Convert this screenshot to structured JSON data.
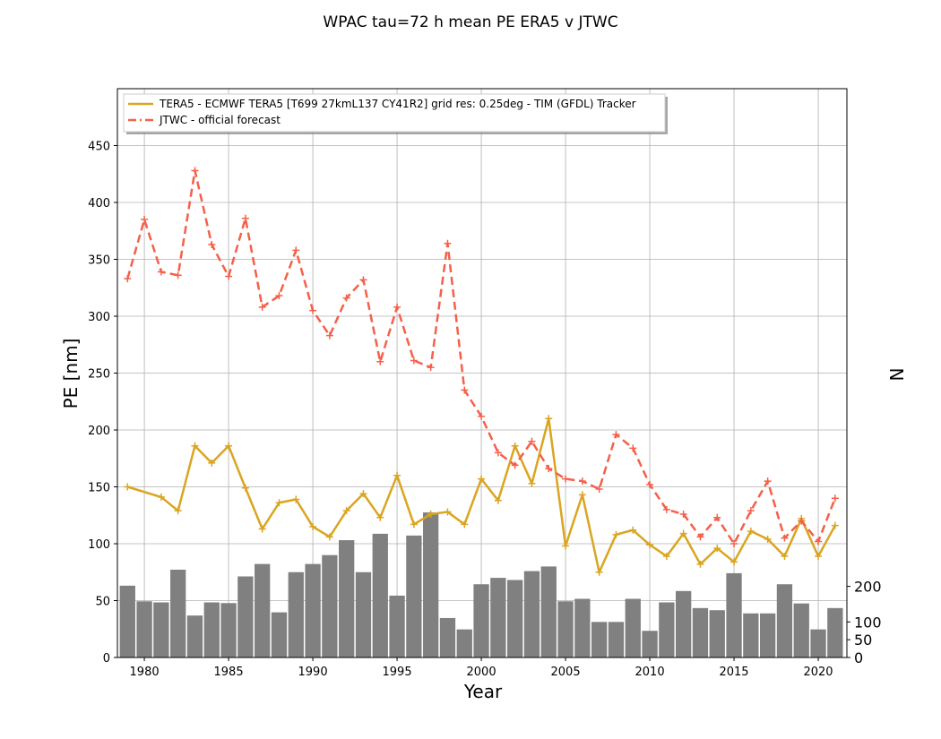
{
  "chart_data": {
    "type": "line",
    "title": "WPAC tau=72 h mean PE ERA5 v JTWC",
    "xlabel": "Year",
    "ylabel": "PE [nm]",
    "y2label": "N",
    "xlim": [
      1978.4,
      2021.7
    ],
    "ylim": [
      0,
      500
    ],
    "y2lim": [
      0,
      1600
    ],
    "xticks": [
      "1980",
      "1985",
      "1990",
      "1995",
      "2000",
      "2005",
      "2010",
      "2015",
      "2020"
    ],
    "yticks": [
      "0",
      "50",
      "100",
      "150",
      "200",
      "250",
      "300",
      "350",
      "400",
      "450"
    ],
    "y2ticks": [
      "0",
      "50",
      "100",
      "200"
    ],
    "grid": true,
    "legend_position": "top-left",
    "colors": {
      "tera5": "#daa520",
      "jtwc": "#f5604a",
      "bars": "#808080"
    },
    "series": [
      {
        "name": "TERA5 - ECMWF TERA5 [T699 27kmL137 CY41R2] grid res: 0.25deg - TIM (GFDL) Tracker",
        "style": "solid",
        "x": [
          1979,
          1981,
          1982,
          1983,
          1984,
          1985,
          1986,
          1987,
          1988,
          1989,
          1990,
          1991,
          1992,
          1993,
          1994,
          1995,
          1996,
          1997,
          1998,
          1999,
          2000,
          2001,
          2002,
          2003,
          2004,
          2005,
          2006,
          2007,
          2008,
          2009,
          2010,
          2011,
          2012,
          2013,
          2014,
          2015,
          2016,
          2017,
          2018,
          2019,
          2020,
          2021
        ],
        "values": [
          150,
          141,
          129,
          186,
          171,
          186,
          149,
          113,
          136,
          139,
          115,
          106,
          129,
          144,
          123,
          160,
          117,
          126,
          128,
          117,
          157,
          138,
          186,
          153,
          210,
          98,
          143,
          75,
          108,
          112,
          99,
          89,
          109,
          82,
          96,
          84,
          111,
          104,
          89,
          122,
          89,
          116
        ]
      },
      {
        "name": "JTWC - official forecast",
        "style": "dashed",
        "x": [
          1979,
          1980,
          1981,
          1982,
          1983,
          1984,
          1985,
          1986,
          1987,
          1988,
          1989,
          1990,
          1991,
          1992,
          1993,
          1994,
          1995,
          1996,
          1997,
          1998,
          1999,
          2000,
          2001,
          2002,
          2003,
          2004,
          2005,
          2006,
          2007,
          2008,
          2009,
          2010,
          2011,
          2012,
          2013,
          2014,
          2015,
          2016,
          2017,
          2018,
          2019,
          2020,
          2021
        ],
        "values": [
          333,
          385,
          339,
          336,
          428,
          363,
          335,
          386,
          308,
          318,
          358,
          305,
          283,
          316,
          332,
          260,
          308,
          261,
          255,
          364,
          235,
          212,
          180,
          169,
          190,
          166,
          157,
          155,
          148,
          196,
          184,
          152,
          130,
          126,
          106,
          123,
          100,
          129,
          155,
          105,
          120,
          102,
          140
        ]
      }
    ],
    "bars": {
      "name": "N",
      "x": [
        1979,
        1980,
        1981,
        1982,
        1983,
        1984,
        1985,
        1986,
        1987,
        1988,
        1989,
        1990,
        1991,
        1992,
        1993,
        1994,
        1995,
        1996,
        1997,
        1998,
        1999,
        2000,
        2001,
        2002,
        2003,
        2004,
        2005,
        2006,
        2007,
        2008,
        2009,
        2010,
        2011,
        2012,
        2013,
        2014,
        2015,
        2016,
        2017,
        2018,
        2019,
        2020,
        2021
      ],
      "values": [
        202,
        158,
        155,
        247,
        118,
        155,
        153,
        228,
        263,
        127,
        240,
        263,
        288,
        330,
        240,
        348,
        174,
        343,
        408,
        111,
        79,
        206,
        224,
        218,
        243,
        256,
        158,
        165,
        100,
        100,
        165,
        75,
        155,
        187,
        139,
        133,
        237,
        124,
        124,
        206,
        152,
        79,
        139
      ]
    }
  }
}
